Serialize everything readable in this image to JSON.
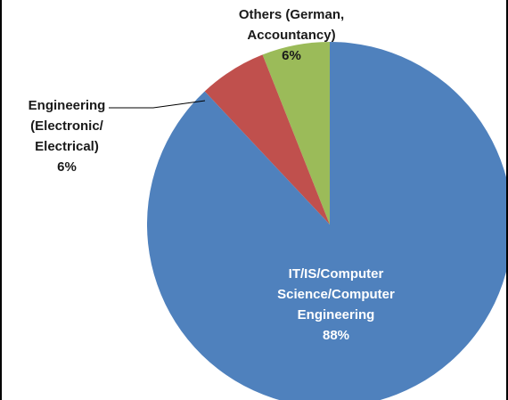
{
  "chart_data": {
    "type": "pie",
    "categories": [
      "IT/IS/Computer Science/Computer Engineering",
      "Engineering (Electronic/Electrical)",
      "Others (German, Accountancy)"
    ],
    "values": [
      88,
      6,
      6
    ],
    "value_labels": [
      "88%",
      "6%",
      "6%"
    ],
    "colors": [
      "#4f81bd",
      "#c0504d",
      "#9bbb59"
    ]
  }
}
